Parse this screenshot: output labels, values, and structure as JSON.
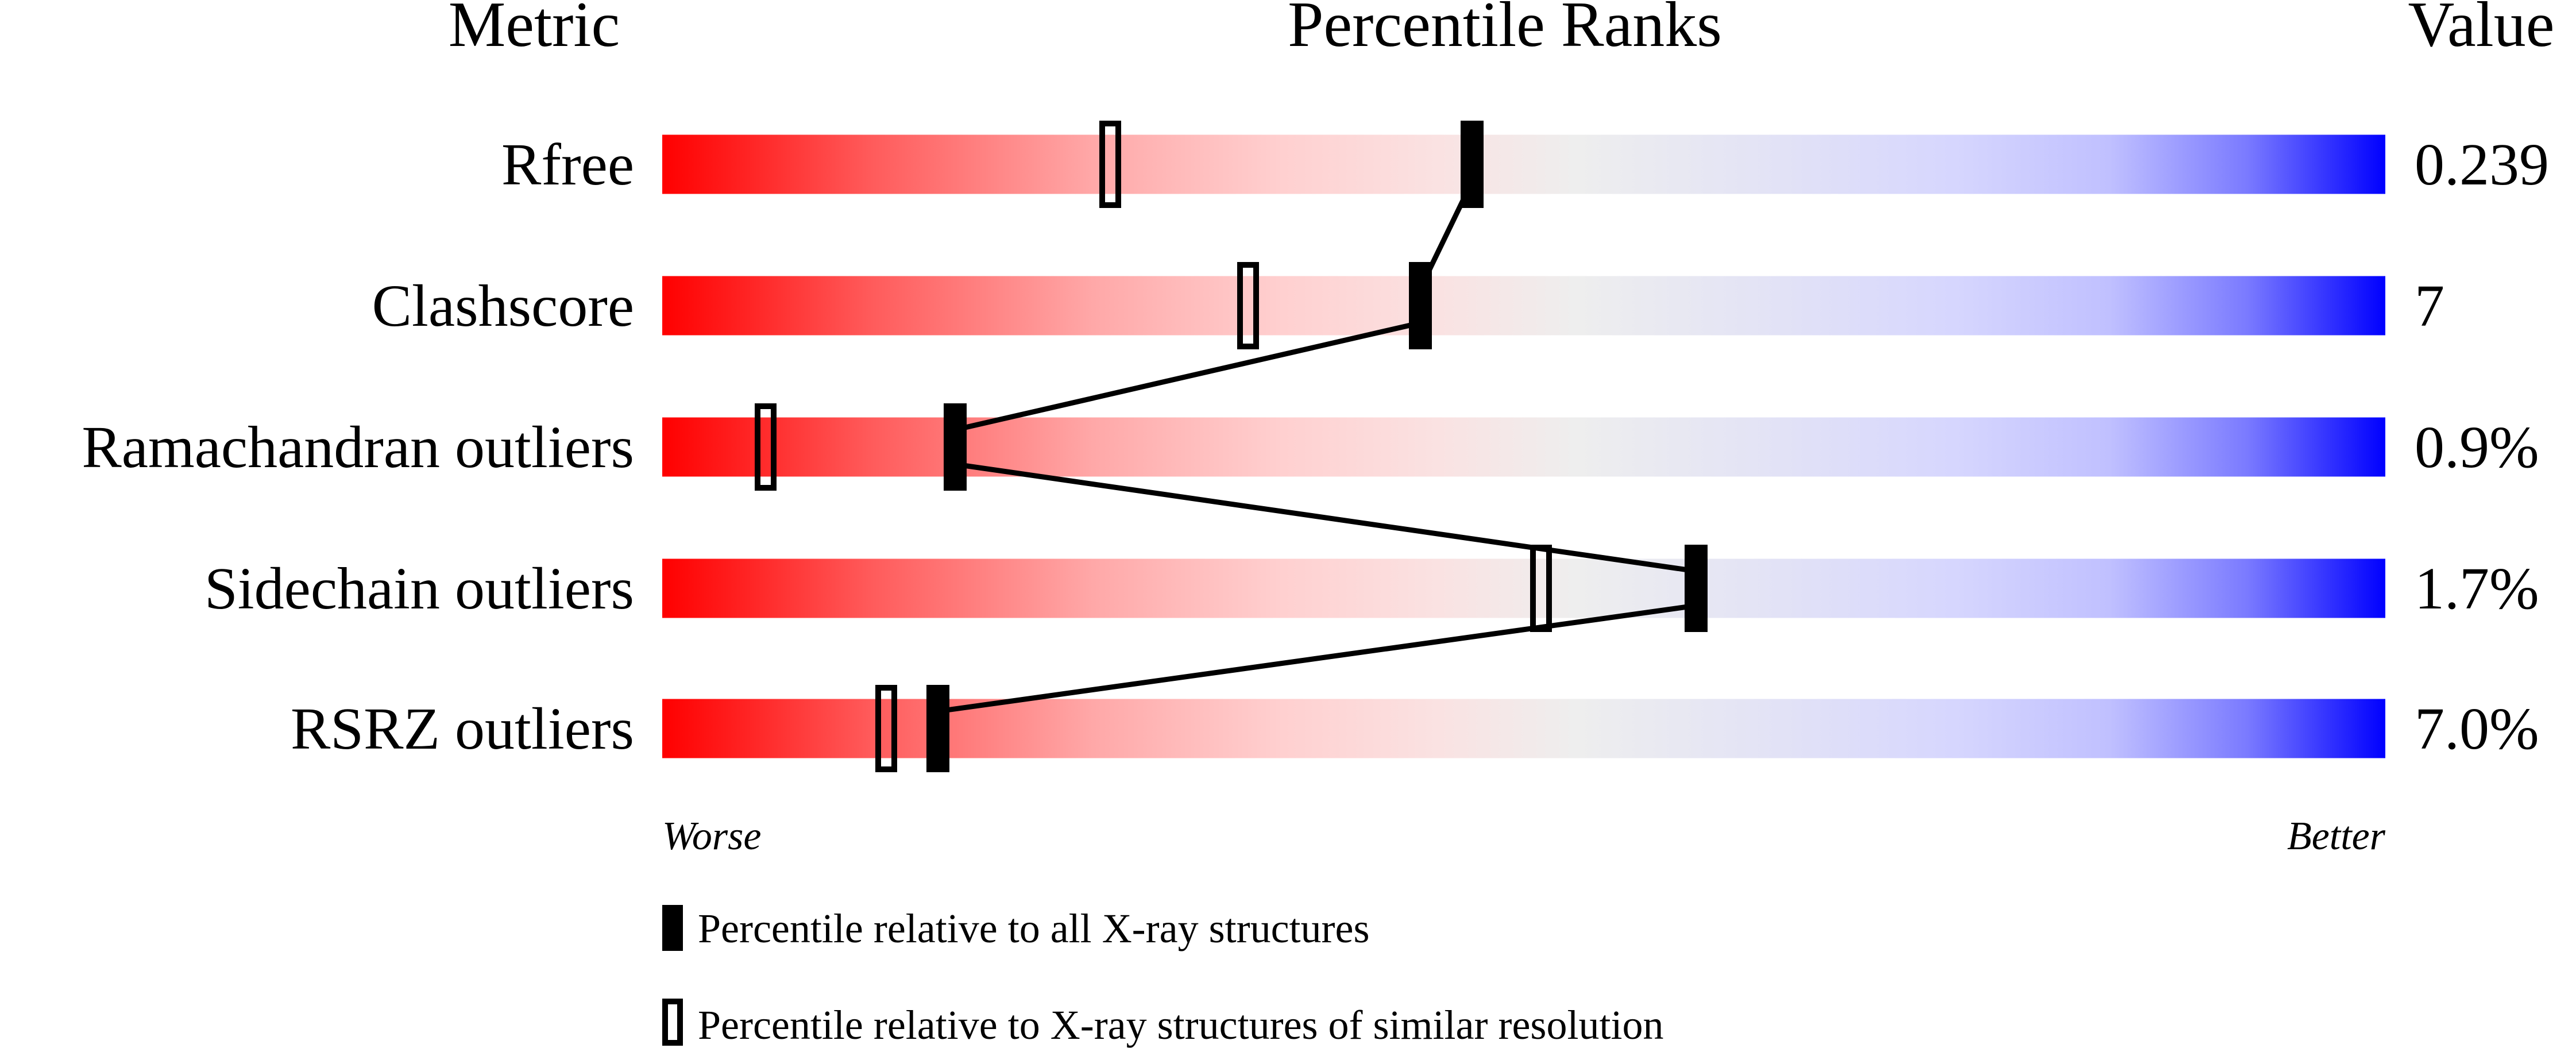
{
  "chart_data": {
    "type": "percentile-slider",
    "headers": {
      "metric": "Metric",
      "ranks": "Percentile Ranks",
      "value": "Value"
    },
    "xlim": [
      0,
      100
    ],
    "rows": [
      {
        "metric": "Rfree",
        "value": "0.239",
        "percentile_all": 47,
        "percentile_similar": 26
      },
      {
        "metric": "Clashscore",
        "value": "7",
        "percentile_all": 44,
        "percentile_similar": 34
      },
      {
        "metric": "Ramachandran outliers",
        "value": "0.9%",
        "percentile_all": 17,
        "percentile_similar": 6
      },
      {
        "metric": "Sidechain outliers",
        "value": "1.7%",
        "percentile_all": 60,
        "percentile_similar": 51
      },
      {
        "metric": "RSRZ outliers",
        "value": "7.0%",
        "percentile_all": 16,
        "percentile_similar": 13
      }
    ],
    "axis": {
      "left": "Worse",
      "right": "Better"
    },
    "legend": {
      "all": "Percentile relative to all X-ray structures",
      "similar": "Percentile relative to X-ray structures of similar resolution"
    },
    "colors": {
      "worse": "#ff0000",
      "middle": "#eeeeee",
      "better": "#0000ff",
      "marker": "#000000"
    }
  }
}
